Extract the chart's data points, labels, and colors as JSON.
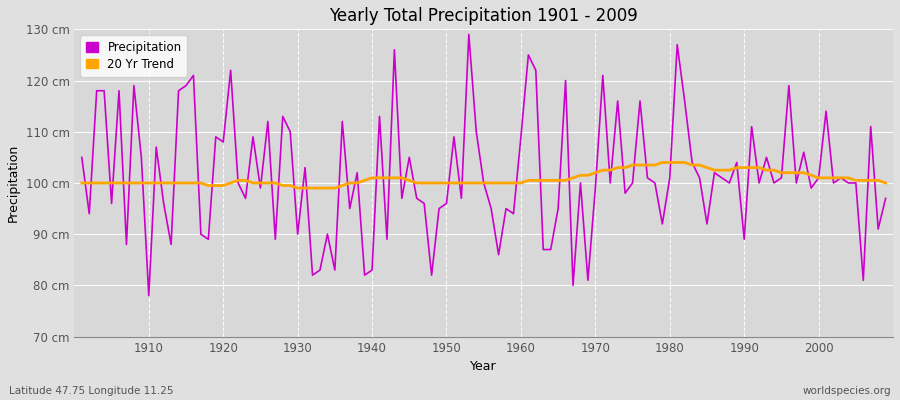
{
  "title": "Yearly Total Precipitation 1901 - 2009",
  "xlabel": "Year",
  "ylabel": "Precipitation",
  "subtitle_left": "Latitude 47.75 Longitude 11.25",
  "subtitle_right": "worldspecies.org",
  "ylim": [
    70,
    130
  ],
  "yticks": [
    70,
    80,
    90,
    100,
    110,
    120,
    130
  ],
  "ytick_labels": [
    "70 cm",
    "80 cm",
    "90 cm",
    "100 cm",
    "110 cm",
    "120 cm",
    "130 cm"
  ],
  "xlim": [
    1900,
    2010
  ],
  "xticks": [
    1910,
    1920,
    1930,
    1940,
    1950,
    1960,
    1970,
    1980,
    1990,
    2000
  ],
  "precip_color": "#CC00CC",
  "trend_color": "#FFA500",
  "fig_bg_color": "#E0E0E0",
  "plot_bg_color": "#D8D8D8",
  "grid_color": "#FFFFFF",
  "years": [
    1901,
    1902,
    1903,
    1904,
    1905,
    1906,
    1907,
    1908,
    1909,
    1910,
    1911,
    1912,
    1913,
    1914,
    1915,
    1916,
    1917,
    1918,
    1919,
    1920,
    1921,
    1922,
    1923,
    1924,
    1925,
    1926,
    1927,
    1928,
    1929,
    1930,
    1931,
    1932,
    1933,
    1934,
    1935,
    1936,
    1937,
    1938,
    1939,
    1940,
    1941,
    1942,
    1943,
    1944,
    1945,
    1946,
    1947,
    1948,
    1949,
    1950,
    1951,
    1952,
    1953,
    1954,
    1955,
    1956,
    1957,
    1958,
    1959,
    1960,
    1961,
    1962,
    1963,
    1964,
    1965,
    1966,
    1967,
    1968,
    1969,
    1970,
    1971,
    1972,
    1973,
    1974,
    1975,
    1976,
    1977,
    1978,
    1979,
    1980,
    1981,
    1982,
    1983,
    1984,
    1985,
    1986,
    1987,
    1988,
    1989,
    1990,
    1991,
    1992,
    1993,
    1994,
    1995,
    1996,
    1997,
    1998,
    1999,
    2000,
    2001,
    2002,
    2003,
    2004,
    2005,
    2006,
    2007,
    2008,
    2009
  ],
  "precip": [
    105,
    94,
    118,
    118,
    96,
    118,
    88,
    119,
    105,
    78,
    107,
    96,
    88,
    118,
    119,
    121,
    90,
    89,
    109,
    108,
    122,
    100,
    97,
    109,
    99,
    112,
    89,
    113,
    110,
    90,
    103,
    82,
    83,
    90,
    83,
    112,
    95,
    102,
    82,
    83,
    113,
    89,
    126,
    97,
    105,
    97,
    96,
    82,
    95,
    96,
    109,
    97,
    129,
    110,
    100,
    95,
    86,
    95,
    94,
    109,
    125,
    122,
    87,
    87,
    95,
    120,
    80,
    100,
    81,
    99,
    121,
    100,
    116,
    98,
    100,
    116,
    101,
    100,
    92,
    101,
    127,
    116,
    104,
    101,
    92,
    102,
    101,
    100,
    104,
    89,
    111,
    100,
    105,
    100,
    101,
    119,
    100,
    106,
    99,
    101,
    114,
    100,
    101,
    100,
    100,
    81,
    111,
    91,
    97
  ],
  "trend_years": [
    1901,
    1902,
    1903,
    1904,
    1905,
    1906,
    1907,
    1908,
    1909,
    1910,
    1911,
    1912,
    1913,
    1914,
    1915,
    1916,
    1917,
    1918,
    1919,
    1920,
    1921,
    1922,
    1923,
    1924,
    1925,
    1926,
    1927,
    1928,
    1929,
    1930,
    1931,
    1932,
    1933,
    1934,
    1935,
    1936,
    1937,
    1938,
    1939,
    1940,
    1941,
    1942,
    1943,
    1944,
    1945,
    1946,
    1947,
    1948,
    1949,
    1950,
    1951,
    1952,
    1953,
    1954,
    1955,
    1956,
    1957,
    1958,
    1959,
    1960,
    1961,
    1962,
    1963,
    1964,
    1965,
    1966,
    1967,
    1968,
    1969,
    1970,
    1971,
    1972,
    1973,
    1974,
    1975,
    1976,
    1977,
    1978,
    1979,
    1980,
    1981,
    1982,
    1983,
    1984,
    1985,
    1986,
    1987,
    1988,
    1989,
    1990,
    1991,
    1992,
    1993,
    1994,
    1995,
    1996,
    1997,
    1998,
    1999,
    2000,
    2001,
    2002,
    2003,
    2004,
    2005,
    2006,
    2007,
    2008,
    2009
  ],
  "trend": [
    100.0,
    100.0,
    100.0,
    100.0,
    100.0,
    100.0,
    100.0,
    100.0,
    100.0,
    100.0,
    100.0,
    100.0,
    100.0,
    100.0,
    100.0,
    100.0,
    100.0,
    99.5,
    99.5,
    99.5,
    100.0,
    100.5,
    100.5,
    100.0,
    100.0,
    100.0,
    100.0,
    99.5,
    99.5,
    99.0,
    99.0,
    99.0,
    99.0,
    99.0,
    99.0,
    99.5,
    100.0,
    100.0,
    100.5,
    101.0,
    101.0,
    101.0,
    101.0,
    101.0,
    100.5,
    100.0,
    100.0,
    100.0,
    100.0,
    100.0,
    100.0,
    100.0,
    100.0,
    100.0,
    100.0,
    100.0,
    100.0,
    100.0,
    100.0,
    100.0,
    100.5,
    100.5,
    100.5,
    100.5,
    100.5,
    100.5,
    101.0,
    101.5,
    101.5,
    102.0,
    102.5,
    102.5,
    103.0,
    103.0,
    103.5,
    103.5,
    103.5,
    103.5,
    104.0,
    104.0,
    104.0,
    104.0,
    103.5,
    103.5,
    103.0,
    102.5,
    102.5,
    102.5,
    103.0,
    103.0,
    103.0,
    103.0,
    102.5,
    102.5,
    102.0,
    102.0,
    102.0,
    102.0,
    101.5,
    101.0,
    101.0,
    101.0,
    101.0,
    101.0,
    100.5,
    100.5,
    100.5,
    100.5,
    100.0
  ]
}
